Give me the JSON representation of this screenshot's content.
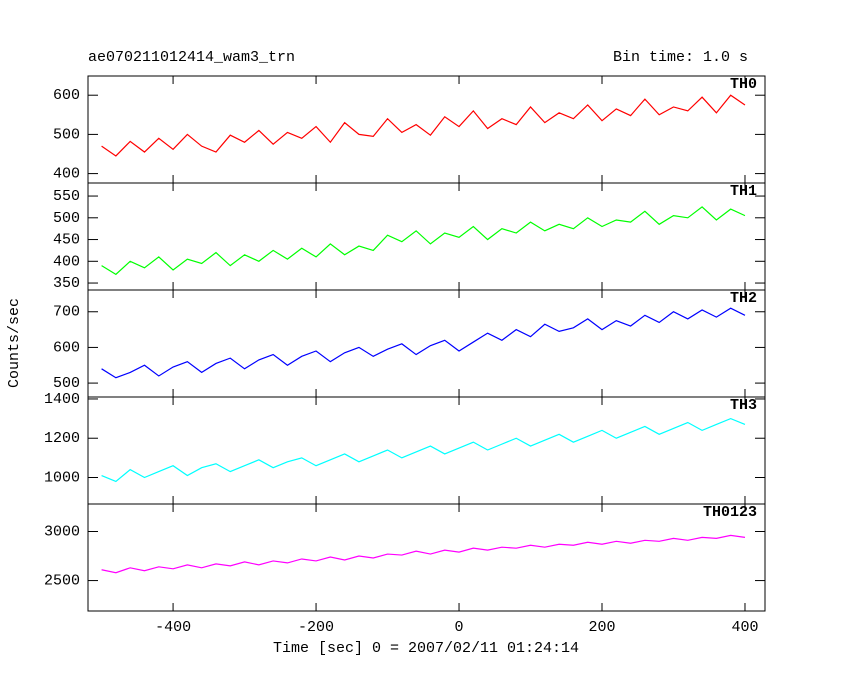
{
  "chart_data": [
    {
      "type": "line",
      "title": "ae070211012414_wam3_trn",
      "subtitle": "Bin time: 1.0 s",
      "ylabel": "Counts/sec",
      "x": [
        -500,
        -480,
        -460,
        -440,
        -420,
        -400,
        -380,
        -360,
        -340,
        -320,
        -300,
        -280,
        -260,
        -240,
        -220,
        -200,
        -180,
        -160,
        -140,
        -120,
        -100,
        -80,
        -60,
        -40,
        -20,
        0,
        20,
        40,
        60,
        80,
        100,
        120,
        140,
        160,
        180,
        200,
        220,
        240,
        260,
        280,
        300,
        320,
        340,
        360,
        380,
        400
      ],
      "series": [
        {
          "name": "TH0",
          "color": "#ff0000",
          "values": [
            470,
            445,
            482,
            455,
            490,
            462,
            500,
            470,
            455,
            498,
            480,
            510,
            475,
            505,
            490,
            520,
            480,
            530,
            500,
            495,
            540,
            505,
            525,
            498,
            545,
            520,
            560,
            515,
            540,
            525,
            570,
            530,
            555,
            540,
            575,
            535,
            565,
            548,
            590,
            550,
            570,
            560,
            595,
            555,
            600,
            575
          ]
        }
      ],
      "xlim": [
        -519,
        428
      ],
      "xticks": [
        -400,
        -200,
        0,
        200,
        400
      ],
      "ylim": [
        376,
        649
      ],
      "yticks": [
        400,
        500,
        600
      ]
    },
    {
      "type": "line",
      "x": [
        -500,
        -480,
        -460,
        -440,
        -420,
        -400,
        -380,
        -360,
        -340,
        -320,
        -300,
        -280,
        -260,
        -240,
        -220,
        -200,
        -180,
        -160,
        -140,
        -120,
        -100,
        -80,
        -60,
        -40,
        -20,
        0,
        20,
        40,
        60,
        80,
        100,
        120,
        140,
        160,
        180,
        200,
        220,
        240,
        260,
        280,
        300,
        320,
        340,
        360,
        380,
        400
      ],
      "series": [
        {
          "name": "TH1",
          "color": "#00ff00",
          "values": [
            390,
            370,
            400,
            385,
            410,
            380,
            405,
            395,
            420,
            390,
            415,
            400,
            425,
            405,
            430,
            410,
            440,
            415,
            435,
            425,
            460,
            445,
            470,
            440,
            465,
            455,
            480,
            450,
            475,
            465,
            490,
            470,
            485,
            475,
            500,
            480,
            495,
            490,
            515,
            485,
            505,
            500,
            525,
            495,
            520,
            505
          ]
        }
      ],
      "xlim": [
        -519,
        428
      ],
      "xticks": [
        -400,
        -200,
        0,
        200,
        400
      ],
      "ylim": [
        334,
        580
      ],
      "yticks": [
        350,
        400,
        450,
        500,
        550
      ]
    },
    {
      "type": "line",
      "x": [
        -500,
        -480,
        -460,
        -440,
        -420,
        -400,
        -380,
        -360,
        -340,
        -320,
        -300,
        -280,
        -260,
        -240,
        -220,
        -200,
        -180,
        -160,
        -140,
        -120,
        -100,
        -80,
        -60,
        -40,
        -20,
        0,
        20,
        40,
        60,
        80,
        100,
        120,
        140,
        160,
        180,
        200,
        220,
        240,
        260,
        280,
        300,
        320,
        340,
        360,
        380,
        400
      ],
      "series": [
        {
          "name": "TH2",
          "color": "#0000ff",
          "values": [
            540,
            515,
            530,
            550,
            520,
            545,
            560,
            530,
            555,
            570,
            540,
            565,
            580,
            550,
            575,
            590,
            560,
            585,
            600,
            575,
            595,
            610,
            580,
            605,
            620,
            590,
            615,
            640,
            620,
            650,
            630,
            665,
            645,
            655,
            680,
            650,
            675,
            660,
            690,
            670,
            700,
            680,
            705,
            685,
            710,
            690
          ]
        }
      ],
      "xlim": [
        -519,
        428
      ],
      "xticks": [
        -400,
        -200,
        0,
        200,
        400
      ],
      "ylim": [
        461,
        761
      ],
      "yticks": [
        500,
        600,
        700
      ]
    },
    {
      "type": "line",
      "x": [
        -500,
        -480,
        -460,
        -440,
        -420,
        -400,
        -380,
        -360,
        -340,
        -320,
        -300,
        -280,
        -260,
        -240,
        -220,
        -200,
        -180,
        -160,
        -140,
        -120,
        -100,
        -80,
        -60,
        -40,
        -20,
        0,
        20,
        40,
        60,
        80,
        100,
        120,
        140,
        160,
        180,
        200,
        220,
        240,
        260,
        280,
        300,
        320,
        340,
        360,
        380,
        400
      ],
      "series": [
        {
          "name": "TH3",
          "color": "#00ffff",
          "values": [
            1010,
            980,
            1040,
            1000,
            1030,
            1060,
            1010,
            1050,
            1070,
            1030,
            1060,
            1090,
            1050,
            1080,
            1100,
            1060,
            1090,
            1120,
            1080,
            1110,
            1140,
            1100,
            1130,
            1160,
            1120,
            1150,
            1180,
            1140,
            1170,
            1200,
            1160,
            1190,
            1220,
            1180,
            1210,
            1240,
            1200,
            1230,
            1260,
            1220,
            1250,
            1280,
            1240,
            1270,
            1300,
            1270
          ]
        }
      ],
      "xlim": [
        -519,
        428
      ],
      "xticks": [
        -400,
        -200,
        0,
        200,
        400
      ],
      "ylim": [
        865,
        1410
      ],
      "yticks": [
        1000,
        1200,
        1400
      ]
    },
    {
      "type": "line",
      "xlabel": "Time [sec] 0 = 2007/02/11 01:24:14",
      "x": [
        -500,
        -480,
        -460,
        -440,
        -420,
        -400,
        -380,
        -360,
        -340,
        -320,
        -300,
        -280,
        -260,
        -240,
        -220,
        -200,
        -180,
        -160,
        -140,
        -120,
        -100,
        -80,
        -60,
        -40,
        -20,
        0,
        20,
        40,
        60,
        80,
        100,
        120,
        140,
        160,
        180,
        200,
        220,
        240,
        260,
        280,
        300,
        320,
        340,
        360,
        380,
        400
      ],
      "series": [
        {
          "name": "TH0123",
          "color": "#ff00ff",
          "values": [
            2610,
            2580,
            2630,
            2600,
            2640,
            2620,
            2660,
            2630,
            2670,
            2650,
            2690,
            2660,
            2700,
            2680,
            2720,
            2700,
            2740,
            2710,
            2750,
            2730,
            2770,
            2760,
            2800,
            2770,
            2810,
            2790,
            2830,
            2810,
            2840,
            2830,
            2860,
            2840,
            2870,
            2860,
            2890,
            2870,
            2900,
            2880,
            2910,
            2900,
            2930,
            2910,
            2940,
            2930,
            2960,
            2940
          ]
        }
      ],
      "xlim": [
        -519,
        428
      ],
      "xticks": [
        -400,
        -200,
        0,
        200,
        400
      ],
      "ylim": [
        2190,
        3280
      ],
      "yticks": [
        2500,
        3000
      ]
    }
  ]
}
